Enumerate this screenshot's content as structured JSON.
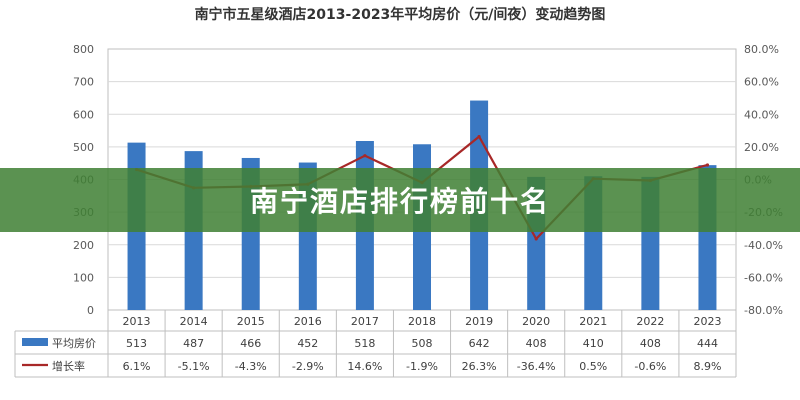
{
  "chart_data": {
    "type": "bar",
    "title": "南宁市五星级酒店2013-2023年平均房价（元/间夜）变动趋势图",
    "categories": [
      "2013",
      "2014",
      "2015",
      "2016",
      "2017",
      "2018",
      "2019",
      "2020",
      "2021",
      "2022",
      "2023"
    ],
    "series": [
      {
        "name": "平均房价",
        "type": "bar",
        "axis": "left",
        "color": "#3a78c2",
        "values": [
          513,
          487,
          466,
          452,
          518,
          508,
          642,
          408,
          410,
          408,
          444
        ],
        "labels": [
          "513",
          "487",
          "466",
          "452",
          "518",
          "508",
          "642",
          "408",
          "410",
          "408",
          "444"
        ]
      },
      {
        "name": "增长率",
        "type": "line",
        "axis": "right",
        "color": "#a82828",
        "values": [
          6.1,
          -5.1,
          -4.3,
          -2.9,
          14.6,
          -1.9,
          26.3,
          -36.4,
          0.5,
          -0.6,
          8.9
        ],
        "labels": [
          "6.1%",
          "-5.1%",
          "-4.3%",
          "-2.9%",
          "14.6%",
          "-1.9%",
          "26.3%",
          "-36.4%",
          "0.5%",
          "-0.6%",
          "8.9%"
        ]
      }
    ],
    "y_left": {
      "ylim": [
        0,
        800
      ],
      "ticks": [
        "0",
        "100",
        "200",
        "300",
        "400",
        "500",
        "600",
        "700",
        "800"
      ]
    },
    "y_right": {
      "ylim": [
        -80,
        80
      ],
      "ticks": [
        "-80.0%",
        "-60.0%",
        "-40.0%",
        "-20.0%",
        "0.0%",
        "20.0%",
        "40.0%",
        "60.0%",
        "80.0%"
      ]
    },
    "grid": true,
    "legend": "data-table-bottom"
  },
  "banner": {
    "text": "南宁酒店排行榜前十名",
    "color": "#408034"
  }
}
